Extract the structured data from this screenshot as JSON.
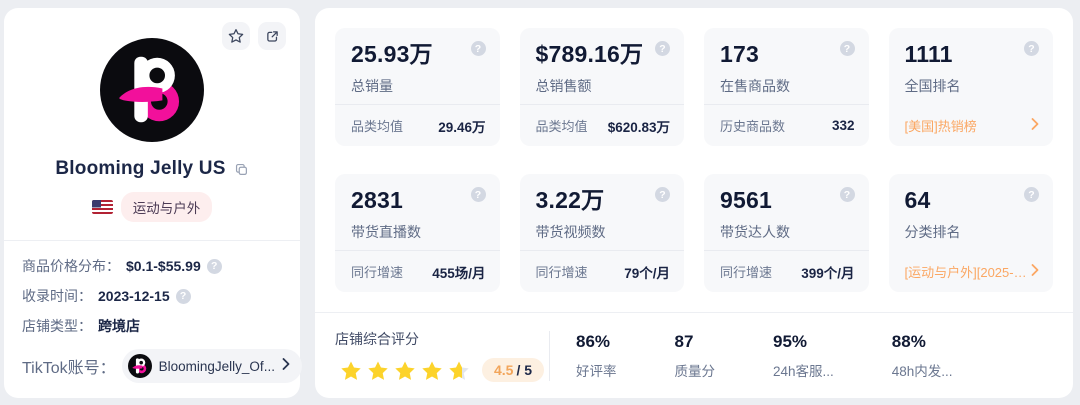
{
  "left_panel": {
    "store_name": "Blooming Jelly US",
    "country_flag": "US",
    "category_tag": "运动与户外",
    "info": [
      {
        "label": "商品价格分布：",
        "value": "$0.1-$55.99",
        "help": true
      },
      {
        "label": "收录时间：",
        "value": "2023-12-15",
        "help": true
      },
      {
        "label": "店铺类型：",
        "value": "跨境店",
        "help": false
      }
    ],
    "tiktok": {
      "label": "TikTok账号：",
      "account": "BloomingJelly_Of..."
    }
  },
  "stats": [
    {
      "value": "25.93万",
      "label": "总销量",
      "foot_label": "品类均值",
      "foot_value": "29.46万"
    },
    {
      "value": "$789.16万",
      "label": "总销售额",
      "foot_label": "品类均值",
      "foot_value": "$620.83万"
    },
    {
      "value": "173",
      "label": "在售商品数",
      "foot_label": "历史商品数",
      "foot_value": "332"
    },
    {
      "value": "1111",
      "label": "全国排名",
      "link": "[美国]热销榜"
    },
    {
      "value": "2831",
      "label": "带货直播数",
      "foot_label": "同行增速",
      "foot_value": "455场/月"
    },
    {
      "value": "3.22万",
      "label": "带货视频数",
      "foot_label": "同行增速",
      "foot_value": "79个/月"
    },
    {
      "value": "9561",
      "label": "带货达人数",
      "foot_label": "同行增速",
      "foot_value": "399个/月"
    },
    {
      "value": "64",
      "label": "分类排名",
      "link": "[运动与户外][2025-08..."
    }
  ],
  "rating": {
    "title": "店铺综合评分",
    "score": "4.5",
    "suffix": "/ 5",
    "full_stars": 4,
    "half_star": true,
    "max": 5
  },
  "metrics": [
    {
      "value": "86%",
      "label": "好评率"
    },
    {
      "value": "87",
      "label": "质量分"
    },
    {
      "value": "95%",
      "label": "24h客服..."
    },
    {
      "value": "88%",
      "label": "48h内发..."
    }
  ],
  "icons": {
    "favorite": "star-icon",
    "open": "external-link-icon",
    "copy": "copy-icon",
    "help": "?"
  },
  "colors": {
    "accent_orange": "#fba763",
    "star_gold": "#fcd32b",
    "brand_pink": "#f2109b",
    "number_navy": "#111a34",
    "card_gray": "#f7f8fa",
    "page_bg": "#eceef2"
  }
}
